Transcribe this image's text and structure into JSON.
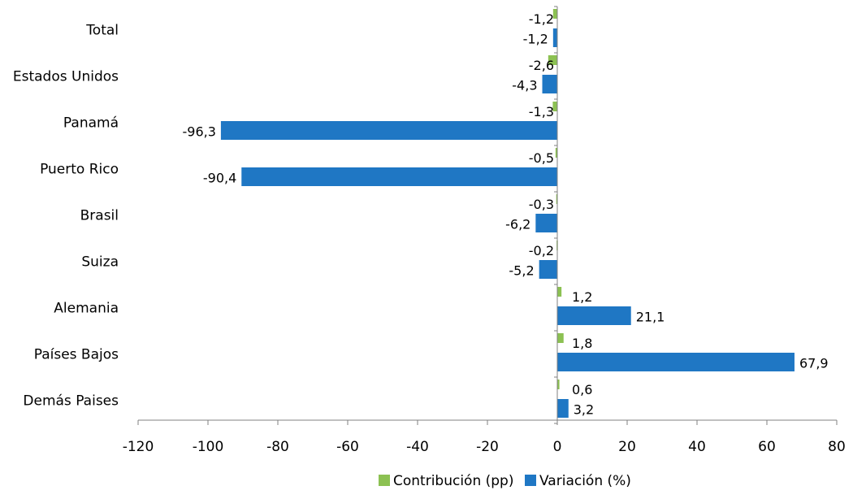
{
  "chart_data": {
    "type": "bar",
    "orientation": "horizontal",
    "categories": [
      "Total",
      "Estados Unidos",
      "Panamá",
      "Puerto Rico",
      "Brasil",
      "Suiza",
      "Alemania",
      "Países Bajos",
      "Demás Paises"
    ],
    "series": [
      {
        "name": "Contribución (pp)",
        "color": "#8CC152",
        "values": [
          -1.2,
          -2.6,
          -1.3,
          -0.5,
          -0.3,
          -0.2,
          1.2,
          1.8,
          0.6
        ],
        "labels": [
          "-1,2",
          "-2,6",
          "-1,3",
          "-0,5",
          "-0,3",
          "-0,2",
          "1,2",
          "1,8",
          "0,6"
        ]
      },
      {
        "name": "Variación (%)",
        "color": "#1F77C4",
        "values": [
          -1.2,
          -4.3,
          -96.3,
          -90.4,
          -6.2,
          -5.2,
          21.1,
          67.9,
          3.2
        ],
        "labels": [
          "-1,2",
          "-4,3",
          "-96,3",
          "-90,4",
          "-6,2",
          "-5,2",
          "21,1",
          "67,9",
          "3,2"
        ]
      }
    ],
    "xlim": [
      -120,
      80
    ],
    "xticks": [
      -120,
      -100,
      -80,
      -60,
      -40,
      -20,
      0,
      20,
      40,
      60,
      80
    ],
    "xtick_labels": [
      "-120",
      "-100",
      "-80",
      "-60",
      "-40",
      "-20",
      "0",
      "20",
      "40",
      "60",
      "80"
    ],
    "grid": false,
    "legend_position": "bottom-center"
  }
}
